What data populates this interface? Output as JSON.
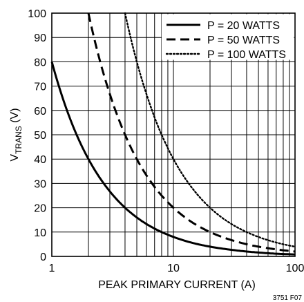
{
  "chart_data": {
    "type": "line",
    "x_scale": "log",
    "xlim": [
      1,
      100
    ],
    "ylim": [
      0,
      100
    ],
    "x_ticks": [
      1,
      10,
      100
    ],
    "y_ticks": [
      0,
      10,
      20,
      30,
      40,
      50,
      60,
      70,
      80,
      90,
      100
    ],
    "xlabel": "PEAK PRIMARY CURRENT (A)",
    "ylabel": {
      "main": "V",
      "subscript": "TRANS",
      "unit": " (V)"
    },
    "grid": true,
    "legend_position": "top-right",
    "series": [
      {
        "name": "P = 20 WATTS",
        "line_style": "solid",
        "x": [
          1,
          1.5,
          2,
          3,
          4,
          5,
          6,
          8,
          10,
          15,
          20,
          30,
          40,
          50,
          70,
          100
        ],
        "y": [
          80,
          53.3,
          40,
          26.7,
          20,
          16,
          13.3,
          10,
          8,
          5.3,
          4,
          2.7,
          2,
          1.6,
          1.1,
          0.8
        ]
      },
      {
        "name": "P = 50 WATTS",
        "line_style": "dashed",
        "x": [
          2,
          2.5,
          3,
          4,
          5,
          6,
          8,
          10,
          15,
          20,
          30,
          40,
          50,
          70,
          100
        ],
        "y": [
          100,
          80,
          66.7,
          50,
          40,
          33.3,
          25,
          20,
          13.3,
          10,
          6.7,
          5,
          4,
          2.9,
          2
        ]
      },
      {
        "name": "P = 100 WATTS",
        "line_style": "dotted",
        "x": [
          4,
          5,
          6,
          8,
          10,
          15,
          20,
          30,
          40,
          50,
          70,
          100
        ],
        "y": [
          100,
          80,
          66.7,
          50,
          40,
          26.7,
          20,
          13.3,
          10,
          8,
          5.7,
          4
        ]
      }
    ],
    "figure_code": "3751 F07"
  }
}
